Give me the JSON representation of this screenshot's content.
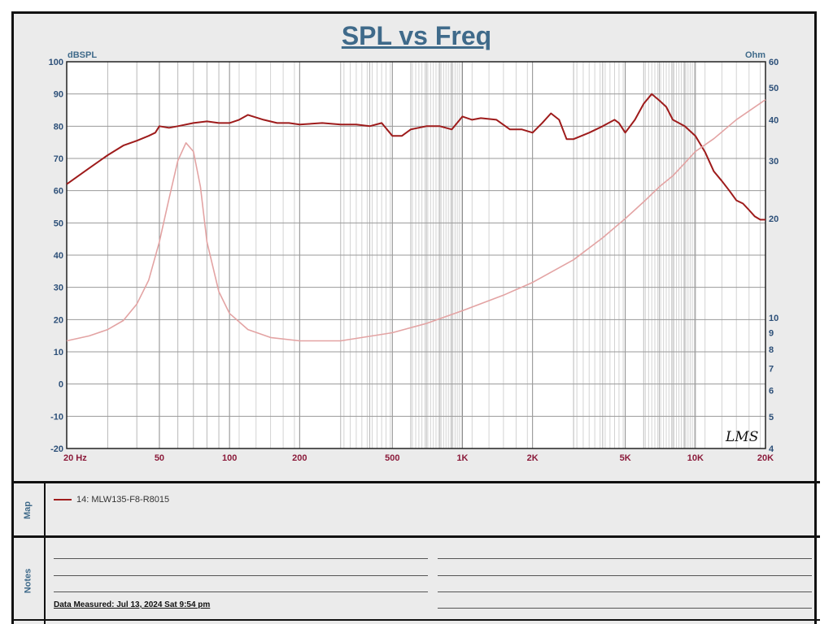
{
  "chart_data": {
    "type": "line",
    "title": "SPL vs Freq",
    "ylabel_left": "dBSPL",
    "ylabel_right": "Ohm",
    "x_scale": "log",
    "xlim": [
      20,
      20000
    ],
    "ylim_left": [
      -20,
      100
    ],
    "ylim_right": [
      4,
      60
    ],
    "y_right_scale": "log",
    "grid": true,
    "x_ticks": [
      {
        "value": 20,
        "label": "20  Hz"
      },
      {
        "value": 50,
        "label": "50"
      },
      {
        "value": 100,
        "label": "100"
      },
      {
        "value": 200,
        "label": "200"
      },
      {
        "value": 500,
        "label": "500"
      },
      {
        "value": 1000,
        "label": "1K"
      },
      {
        "value": 2000,
        "label": "2K"
      },
      {
        "value": 5000,
        "label": "5K"
      },
      {
        "value": 10000,
        "label": "10K"
      },
      {
        "value": 20000,
        "label": "20K"
      }
    ],
    "y_left_ticks": [
      100,
      90,
      80,
      70,
      60,
      50,
      40,
      30,
      20,
      10,
      0,
      -10,
      -20
    ],
    "y_right_ticks": [
      60,
      50,
      40,
      30,
      20,
      10,
      9,
      8,
      7,
      6,
      5,
      4
    ],
    "series": [
      {
        "name": "14: MLW135-F8-R8015",
        "axis": "left",
        "color": "#9e1b1b",
        "x": [
          20,
          25,
          30,
          35,
          40,
          45,
          48,
          50,
          55,
          60,
          70,
          80,
          90,
          100,
          110,
          120,
          140,
          160,
          180,
          200,
          250,
          300,
          350,
          400,
          450,
          500,
          550,
          600,
          700,
          800,
          900,
          1000,
          1100,
          1200,
          1400,
          1600,
          1800,
          2000,
          2200,
          2400,
          2600,
          2800,
          3000,
          3500,
          4000,
          4500,
          4700,
          5000,
          5500,
          6000,
          6500,
          7000,
          7500,
          8000,
          9000,
          10000,
          11000,
          12000,
          13000,
          14000,
          15000,
          16000,
          17000,
          18000,
          19000,
          20000
        ],
        "y": [
          62,
          67,
          71,
          74,
          75.5,
          77,
          78,
          80,
          79.5,
          80,
          81,
          81.5,
          81,
          81,
          82,
          83.5,
          82,
          81,
          81,
          80.5,
          81,
          80.5,
          80.5,
          80,
          81,
          77,
          77,
          79,
          80,
          80,
          79,
          83,
          82,
          82.5,
          82,
          79,
          79,
          78,
          81,
          84,
          82,
          76,
          76,
          78,
          80,
          82,
          81,
          78,
          82,
          87,
          90,
          88,
          86,
          82,
          80,
          77,
          72,
          66,
          63,
          60,
          57,
          56,
          54,
          52,
          51,
          51
        ]
      },
      {
        "name": "",
        "axis": "right",
        "color": "#e3a3a3",
        "x": [
          20,
          25,
          30,
          35,
          40,
          45,
          50,
          55,
          60,
          65,
          70,
          75,
          80,
          90,
          100,
          120,
          150,
          200,
          300,
          500,
          700,
          1000,
          1500,
          2000,
          3000,
          4000,
          5000,
          6000,
          7000,
          8000,
          9000,
          10000,
          12000,
          15000,
          20000
        ],
        "y": [
          8.5,
          8.8,
          9.2,
          9.8,
          11,
          13,
          17,
          23,
          30,
          34,
          32,
          25,
          17,
          12,
          10.3,
          9.2,
          8.7,
          8.5,
          8.5,
          9,
          9.6,
          10.5,
          11.7,
          12.8,
          15,
          17.5,
          20,
          22.5,
          25,
          27,
          29.5,
          32,
          35,
          40,
          46
        ]
      }
    ]
  },
  "panels": {
    "map_label": "Map",
    "notes_label": "Notes",
    "legend_entry": "14: MLW135-F8-R8015",
    "measured": "Data Measured: Jul 13, 2024  Sat  9:54 pm",
    "signature": "LMS"
  }
}
